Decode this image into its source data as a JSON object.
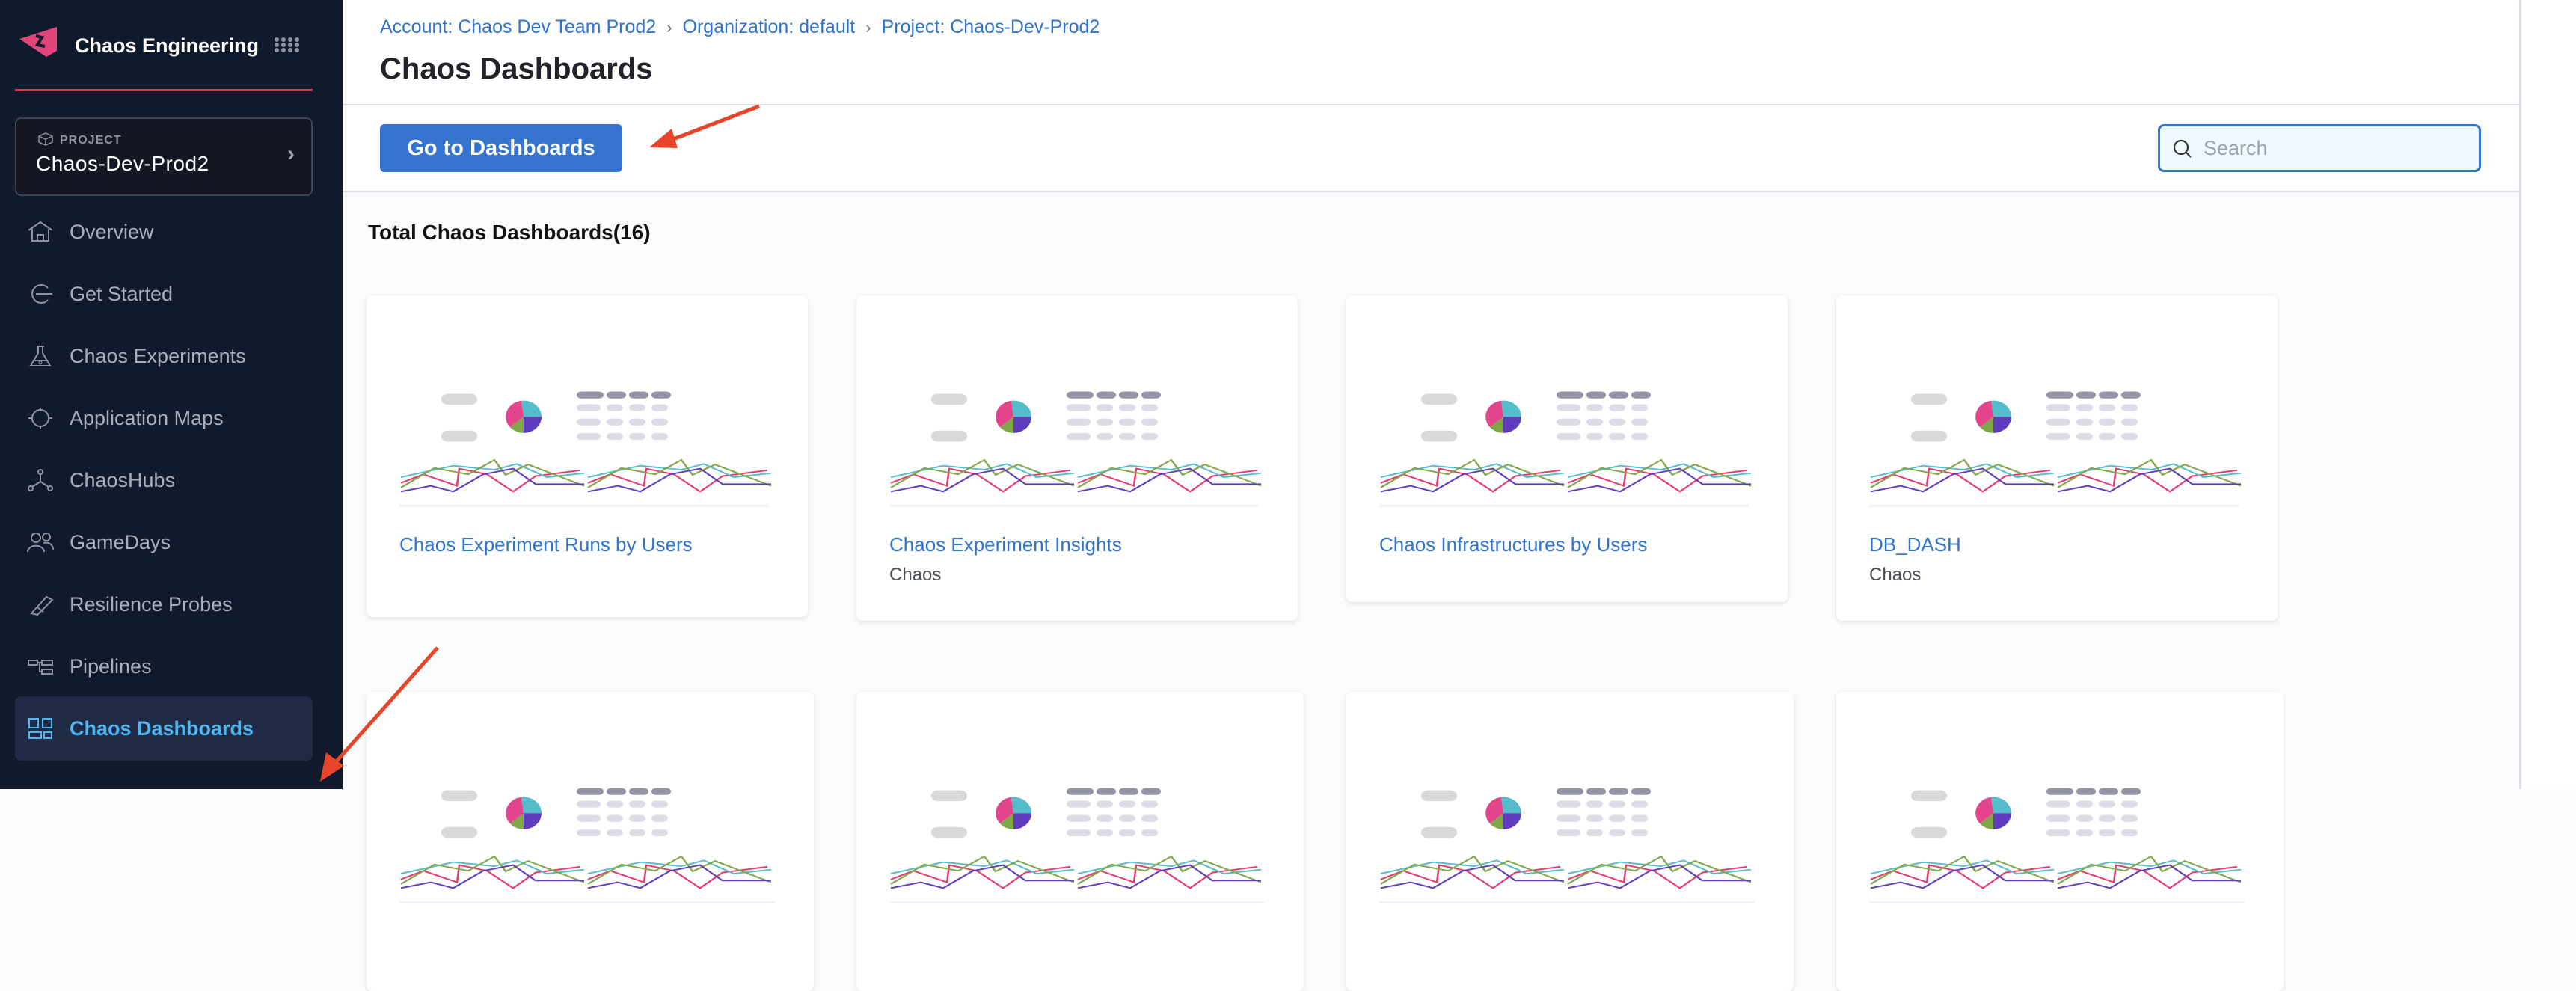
{
  "sidebar": {
    "module_name": "Chaos Engineering",
    "project_label": "PROJECT",
    "project_name": "Chaos-Dev-Prod2",
    "items": [
      {
        "label": "Overview",
        "icon": "home-icon"
      },
      {
        "label": "Get Started",
        "icon": "get-started-icon"
      },
      {
        "label": "Chaos Experiments",
        "icon": "flask-icon"
      },
      {
        "label": "Application Maps",
        "icon": "target-icon"
      },
      {
        "label": "ChaosHubs",
        "icon": "hub-icon"
      },
      {
        "label": "GameDays",
        "icon": "users-icon"
      },
      {
        "label": "Resilience Probes",
        "icon": "probe-icon"
      },
      {
        "label": "Pipelines",
        "icon": "pipeline-icon"
      },
      {
        "label": "Chaos Dashboards",
        "icon": "dashboard-grid-icon",
        "active": true
      }
    ],
    "colors": {
      "background": "#111a2c",
      "accent_line": "#e5334f",
      "active_text": "#4fb6f2"
    }
  },
  "header": {
    "breadcrumb": [
      "Account: Chaos Dev Team Prod2",
      "Organization: default",
      "Project: Chaos-Dev-Prod2"
    ],
    "title": "Chaos Dashboards"
  },
  "toolbar": {
    "go_button": "Go to Dashboards",
    "search_placeholder": "Search",
    "search_value": ""
  },
  "content": {
    "total_label": "Total Chaos Dashboards(16)",
    "cards": [
      {
        "title": "Chaos Experiment Runs by Users",
        "subtitle": ""
      },
      {
        "title": "Chaos Experiment Insights",
        "subtitle": "Chaos"
      },
      {
        "title": "Chaos Infrastructures by Users",
        "subtitle": ""
      },
      {
        "title": "DB_DASH",
        "subtitle": "Chaos"
      },
      {
        "title": "",
        "subtitle": ""
      },
      {
        "title": "",
        "subtitle": ""
      },
      {
        "title": "",
        "subtitle": ""
      },
      {
        "title": "",
        "subtitle": ""
      }
    ]
  },
  "colors": {
    "primary": "#3474cf",
    "link": "#2f75d0",
    "annotation_arrow": "#e8442a"
  }
}
